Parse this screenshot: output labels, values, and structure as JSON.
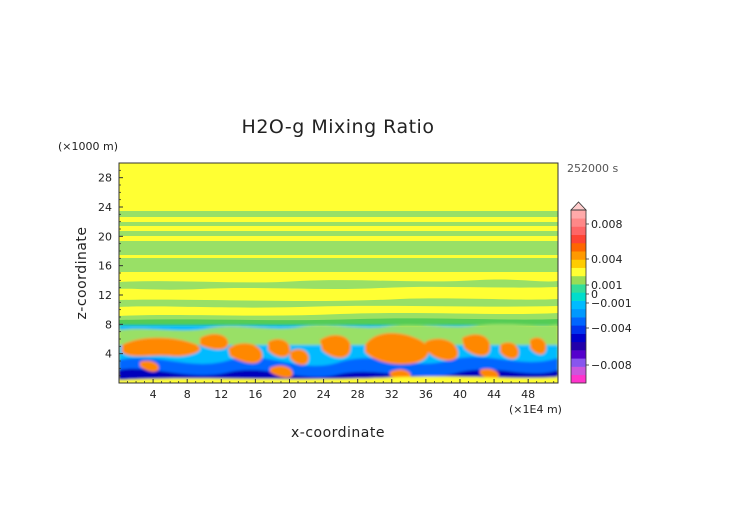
{
  "chart_data": {
    "type": "heatmap",
    "title": "H2O-g Mixing Ratio",
    "xlabel": "x-coordinate",
    "ylabel": "z-coordinate",
    "x_unit": "(×1E4 m)",
    "y_unit": "(×1000 m)",
    "time_label": "252000 s",
    "xlim": [
      0,
      51.5
    ],
    "ylim": [
      0,
      30
    ],
    "x_ticks": [
      4,
      8,
      12,
      16,
      20,
      24,
      28,
      32,
      36,
      40,
      44,
      48
    ],
    "y_ticks": [
      4,
      8,
      12,
      16,
      20,
      24,
      28
    ],
    "colorbar_labels": [
      {
        "value": 0.008,
        "text": "0.008"
      },
      {
        "value": 0.004,
        "text": "0.004"
      },
      {
        "value": 0.001,
        "text": "0.001"
      },
      {
        "value": 0,
        "text": "0"
      },
      {
        "value": -0.001,
        "text": "−0.001"
      },
      {
        "value": -0.004,
        "text": "−0.004"
      },
      {
        "value": -0.008,
        "text": "−0.008"
      }
    ],
    "colorbar_colors": [
      "#ff33cc",
      "#cc55dd",
      "#8855ee",
      "#5500cc",
      "#2200aa",
      "#0000cc",
      "#0033ee",
      "#0066ff",
      "#0099ff",
      "#00bbff",
      "#00ddcc",
      "#33dd99",
      "#99dd55",
      "#ffff33",
      "#ffcc00",
      "#ff9900",
      "#ff6600",
      "#ff4433",
      "#ff6666",
      "#ff8888",
      "#ffaaaa"
    ],
    "field_colors": {
      "yellow": "#ffff33",
      "light_green": "#99e066",
      "green": "#55cc55",
      "orange": "#ff8800",
      "blue": "#0066ff",
      "dark_blue": "#0000bb",
      "cyan": "#00bbff"
    }
  }
}
